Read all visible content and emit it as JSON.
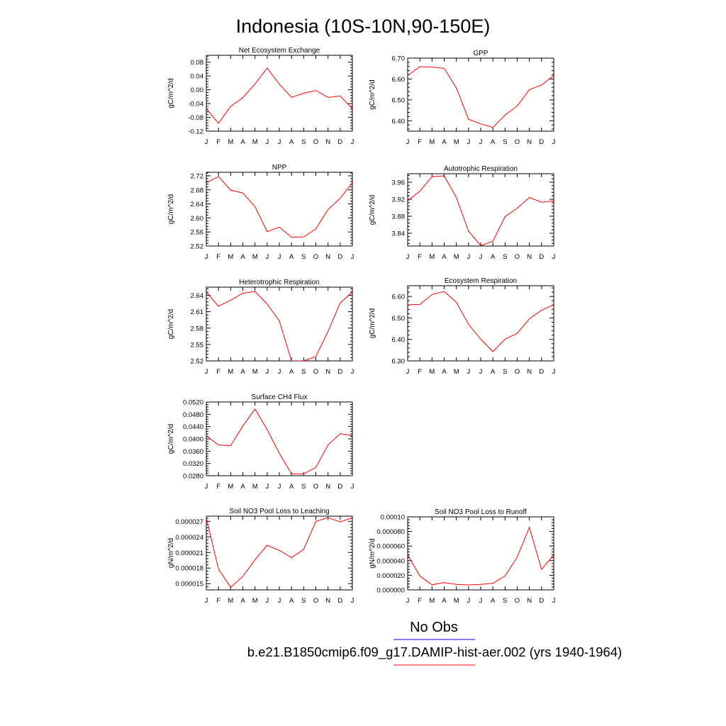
{
  "figure": {
    "title": "Indonesia (10S-10N,90-150E)",
    "legend": {
      "obs_label": "No Obs",
      "obs_color": "#0000ff",
      "model_label": "b.e21.B1850cmip6.f09_g17.DAMIP-hist-aer.002 (yrs 1940-1964)",
      "model_color": "#ff0000"
    }
  },
  "chart_data": [
    {
      "type": "line",
      "title": "Net Ecosystem Exchange",
      "ylabel": "gC/m^2/d",
      "x": [
        "J",
        "F",
        "M",
        "A",
        "M",
        "J",
        "J",
        "A",
        "S",
        "O",
        "N",
        "D",
        "J"
      ],
      "ylim": [
        -0.12,
        0.1
      ],
      "yticks": [
        -0.12,
        -0.08,
        -0.04,
        0.0,
        0.04,
        0.08
      ],
      "ytick_labels": [
        "-0.12",
        "-0.08",
        "-0.04",
        "0.00",
        "0.04",
        "0.08"
      ],
      "series": [
        {
          "color": "#ff0000",
          "values": [
            -0.055,
            -0.097,
            -0.048,
            -0.023,
            0.017,
            0.063,
            0.016,
            -0.022,
            -0.01,
            -0.002,
            -0.022,
            -0.018,
            -0.055
          ]
        }
      ]
    },
    {
      "type": "line",
      "title": "GPP",
      "ylabel": "gC/m^2/d",
      "x": [
        "J",
        "F",
        "M",
        "A",
        "M",
        "J",
        "J",
        "A",
        "S",
        "O",
        "N",
        "D",
        "J"
      ],
      "ylim": [
        6.35,
        6.7
      ],
      "yticks": [
        6.4,
        6.5,
        6.6,
        6.7
      ],
      "ytick_labels": [
        "6.40",
        "6.50",
        "6.60",
        "6.70"
      ],
      "series": [
        {
          "color": "#ff0000",
          "values": [
            6.617,
            6.659,
            6.657,
            6.651,
            6.557,
            6.407,
            6.385,
            6.368,
            6.427,
            6.471,
            6.549,
            6.571,
            6.617
          ]
        }
      ]
    },
    {
      "type": "line",
      "title": "NPP",
      "ylabel": "gC/m^2/d",
      "x": [
        "J",
        "F",
        "M",
        "A",
        "M",
        "J",
        "J",
        "A",
        "S",
        "O",
        "N",
        "D",
        "J"
      ],
      "ylim": [
        2.52,
        2.73
      ],
      "yticks": [
        2.52,
        2.56,
        2.6,
        2.64,
        2.68,
        2.72
      ],
      "ytick_labels": [
        "2.52",
        "2.56",
        "2.60",
        "2.64",
        "2.68",
        "2.72"
      ],
      "series": [
        {
          "color": "#ff0000",
          "values": [
            2.7,
            2.718,
            2.679,
            2.671,
            2.632,
            2.561,
            2.574,
            2.545,
            2.546,
            2.569,
            2.624,
            2.656,
            2.7
          ]
        }
      ]
    },
    {
      "type": "line",
      "title": "Autotrophic Respiration",
      "ylabel": "gC/m^2/d",
      "x": [
        "J",
        "F",
        "M",
        "A",
        "M",
        "J",
        "J",
        "A",
        "S",
        "O",
        "N",
        "D",
        "J"
      ],
      "ylim": [
        3.81,
        3.98
      ],
      "yticks": [
        3.84,
        3.88,
        3.92,
        3.96
      ],
      "ytick_labels": [
        "3.84",
        "3.88",
        "3.92",
        "3.96"
      ],
      "series": [
        {
          "color": "#ff0000",
          "values": [
            3.916,
            3.939,
            3.973,
            3.975,
            3.924,
            3.845,
            3.811,
            3.821,
            3.879,
            3.899,
            3.924,
            3.913,
            3.916
          ]
        }
      ]
    },
    {
      "type": "line",
      "title": "Heterotrophic Respiration",
      "ylabel": "gC/m^2/d",
      "x": [
        "J",
        "F",
        "M",
        "A",
        "M",
        "J",
        "J",
        "A",
        "S",
        "O",
        "N",
        "D",
        "J"
      ],
      "ylim": [
        2.52,
        2.655
      ],
      "yticks": [
        2.52,
        2.55,
        2.58,
        2.61,
        2.64
      ],
      "ytick_labels": [
        "2.52",
        "2.55",
        "2.58",
        "2.61",
        "2.64"
      ],
      "series": [
        {
          "color": "#ff0000",
          "values": [
            2.646,
            2.62,
            2.631,
            2.644,
            2.647,
            2.624,
            2.593,
            2.52,
            2.52,
            2.528,
            2.574,
            2.626,
            2.646
          ]
        }
      ]
    },
    {
      "type": "line",
      "title": "Ecosystem Respiration",
      "ylabel": "gC/m^2/d",
      "x": [
        "J",
        "F",
        "M",
        "A",
        "M",
        "J",
        "J",
        "A",
        "S",
        "O",
        "N",
        "D",
        "J"
      ],
      "ylim": [
        6.3,
        6.65
      ],
      "yticks": [
        6.3,
        6.4,
        6.5,
        6.6
      ],
      "ytick_labels": [
        "6.30",
        "6.40",
        "6.50",
        "6.60"
      ],
      "series": [
        {
          "color": "#ff0000",
          "values": [
            6.561,
            6.563,
            6.609,
            6.623,
            6.573,
            6.47,
            6.401,
            6.343,
            6.401,
            6.428,
            6.496,
            6.536,
            6.561
          ]
        }
      ]
    },
    {
      "type": "line",
      "title": "Surface CH4 Flux",
      "ylabel": "gC/m^2/d",
      "x": [
        "J",
        "F",
        "M",
        "A",
        "M",
        "J",
        "J",
        "A",
        "S",
        "O",
        "N",
        "D",
        "J"
      ],
      "ylim": [
        0.028,
        0.052
      ],
      "yticks": [
        0.028,
        0.032,
        0.036,
        0.04,
        0.044,
        0.048,
        0.052
      ],
      "ytick_labels": [
        "0.0280",
        "0.0320",
        "0.0360",
        "0.0400",
        "0.0440",
        "0.0480",
        "0.0520"
      ],
      "series": [
        {
          "color": "#ff0000",
          "values": [
            0.041,
            0.038,
            0.0378,
            0.0442,
            0.0497,
            0.043,
            0.0353,
            0.0286,
            0.0286,
            0.0307,
            0.038,
            0.0417,
            0.041
          ]
        }
      ]
    },
    {
      "type": "line",
      "title": "Soil NO3 Pool Loss to Leaching",
      "ylabel": "gN/m^2/d",
      "x": [
        "J",
        "F",
        "M",
        "A",
        "M",
        "J",
        "J",
        "A",
        "S",
        "O",
        "N",
        "D",
        "J"
      ],
      "ylim": [
        1.38e-05,
        2.8e-05
      ],
      "yticks": [
        1.5e-05,
        1.8e-05,
        2.1e-05,
        2.4e-05,
        2.7e-05
      ],
      "ytick_labels": [
        "0.000015",
        "0.000018",
        "0.000021",
        "0.000024",
        "0.000027"
      ],
      "series": [
        {
          "color": "#ff0000",
          "values": [
            2.77e-05,
            1.78e-05,
            1.43e-05,
            1.64e-05,
            1.96e-05,
            2.24e-05,
            2.14e-05,
            2e-05,
            2.16e-05,
            2.7e-05,
            2.77e-05,
            2.69e-05,
            2.77e-05
          ]
        }
      ]
    },
    {
      "type": "line",
      "title": "Soil NO3 Pool Loss to Runoff",
      "ylabel": "gN/m^2/d",
      "x": [
        "J",
        "F",
        "M",
        "A",
        "M",
        "J",
        "J",
        "A",
        "S",
        "O",
        "N",
        "D",
        "J"
      ],
      "ylim": [
        0.0,
        0.0001
      ],
      "yticks": [
        0.0,
        2e-05,
        4e-05,
        6e-05,
        8e-05,
        0.0001
      ],
      "ytick_labels": [
        "0.000000",
        "0.000020",
        "0.000040",
        "0.000060",
        "0.000080",
        "0.00010"
      ],
      "series": [
        {
          "color": "#ff0000",
          "values": [
            4.8e-05,
            1.9e-05,
            7e-06,
            1e-05,
            7.5e-06,
            6.8e-06,
            7.5e-06,
            9e-06,
            1.9e-05,
            4.5e-05,
            8.55e-05,
            2.8e-05,
            4.8e-05
          ]
        }
      ]
    }
  ]
}
